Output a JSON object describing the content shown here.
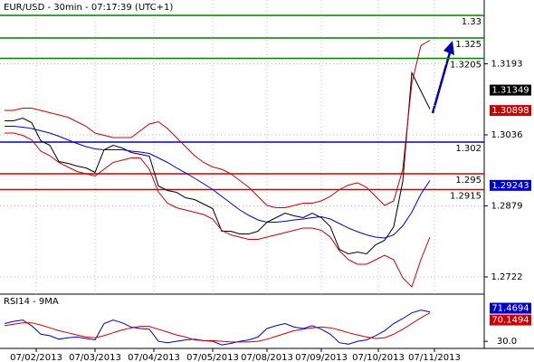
{
  "chart_data": [
    {
      "type": "line",
      "title": "EUR/USD - 30min - 07:17:39 (UTC+1)",
      "x": [
        0,
        1,
        2,
        3,
        4,
        5,
        6,
        7,
        8,
        9,
        10,
        11,
        12,
        13,
        14,
        15,
        16,
        17,
        18,
        19,
        20,
        21,
        22,
        23,
        24,
        25,
        26,
        27,
        28,
        29,
        30,
        31,
        32,
        33,
        34,
        35,
        36,
        37,
        38,
        39,
        40,
        41,
        42,
        43,
        44,
        45,
        46,
        47
      ],
      "xlim": [
        -0.5,
        53
      ],
      "xticks": [
        {
          "value": 3.5,
          "label": "07/02/2013"
        },
        {
          "value": 10,
          "label": "07/03/2013"
        },
        {
          "value": 16.5,
          "label": "07/04/2013"
        },
        {
          "value": 23,
          "label": "07/05/2013"
        },
        {
          "value": 29,
          "label": "07/08/2013"
        },
        {
          "value": 35,
          "label": "07/09/2013"
        },
        {
          "value": 41.3,
          "label": "07/10/2013"
        },
        {
          "value": 47.5,
          "label": "07/11/2013"
        }
      ],
      "ylim": [
        1.2684,
        1.3334
      ],
      "yticks": [
        1.3193,
        1.3036,
        1.2879,
        1.2722
      ],
      "grid": true,
      "series": [
        {
          "color": "#000000",
          "values": [
            1.3067,
            1.3067,
            1.3073,
            1.3063,
            1.3023,
            1.3013,
            1.2977,
            1.2973,
            1.2967,
            1.2963,
            1.2953,
            1.3003,
            1.3013,
            1.3007,
            1.2997,
            1.2993,
            1.2989,
            1.2923,
            1.2913,
            1.2909,
            1.2897,
            1.2893,
            1.2883,
            1.2873,
            1.2823,
            1.2823,
            1.2817,
            1.2817,
            1.2823,
            1.2843,
            1.2853,
            1.2863,
            1.2857,
            1.2853,
            1.2863,
            1.2853,
            1.2833,
            1.2783,
            1.2773,
            1.2777,
            1.2773,
            1.2793,
            1.2803,
            1.2833,
            1.2933,
            1.3173,
            1.3133,
            1.3093
          ]
        },
        {
          "color": "#0000cc",
          "values": [
            1.3055,
            1.3055,
            1.3053,
            1.305,
            1.3045,
            1.304,
            1.3033,
            1.3025,
            1.3017,
            1.301,
            1.3005,
            1.3003,
            1.3003,
            1.3003,
            1.3,
            1.2998,
            1.2995,
            1.2985,
            1.2975,
            1.2963,
            1.2952,
            1.294,
            1.2928,
            1.2915,
            1.29,
            1.2885,
            1.287,
            1.2858,
            1.2848,
            1.2843,
            1.2843,
            1.2845,
            1.2848,
            1.285,
            1.2853,
            1.2855,
            1.285,
            1.284,
            1.283,
            1.2822,
            1.2815,
            1.281,
            1.2808,
            1.2815,
            1.2835,
            1.2865,
            1.2905,
            1.2935
          ]
        },
        {
          "color": "#cc0000",
          "values": [
            1.309,
            1.309,
            1.3095,
            1.3095,
            1.309,
            1.3085,
            1.308,
            1.3075,
            1.3065,
            1.3055,
            1.304,
            1.3035,
            1.303,
            1.303,
            1.303,
            1.3045,
            1.306,
            1.3065,
            1.305,
            1.303,
            1.301,
            1.299,
            1.2975,
            1.2965,
            1.296,
            1.295,
            1.2935,
            1.292,
            1.29,
            1.288,
            1.2875,
            1.2875,
            1.288,
            1.2885,
            1.2885,
            1.289,
            1.29,
            1.2915,
            1.2925,
            1.293,
            1.292,
            1.29,
            1.288,
            1.289,
            1.296,
            1.315,
            1.3233,
            1.3245
          ]
        },
        {
          "color": "#cc0000",
          "values": [
            1.304,
            1.304,
            1.3035,
            1.3025,
            1.3,
            1.299,
            1.2975,
            1.2965,
            1.2955,
            1.295,
            1.2945,
            1.296,
            1.2975,
            1.298,
            1.2985,
            1.2985,
            1.296,
            1.291,
            1.2885,
            1.2875,
            1.287,
            1.2865,
            1.286,
            1.285,
            1.2825,
            1.2815,
            1.281,
            1.2805,
            1.2805,
            1.281,
            1.2815,
            1.282,
            1.2825,
            1.283,
            1.283,
            1.2825,
            1.281,
            1.278,
            1.276,
            1.275,
            1.275,
            1.276,
            1.277,
            1.276,
            1.272,
            1.27,
            1.276,
            1.281
          ]
        }
      ],
      "levels": [
        {
          "value": 1.33,
          "color": "#008000"
        },
        {
          "value": 1.325,
          "color": "#008000"
        },
        {
          "value": 1.3205,
          "color": "#008000"
        },
        {
          "value": 1.302,
          "color": "#0000cc"
        },
        {
          "value": 1.295,
          "color": "#cc0000"
        },
        {
          "value": 1.2915,
          "color": "#cc0000"
        }
      ],
      "price_tags": [
        {
          "value": 1.31349,
          "color": "#000000"
        },
        {
          "value": 1.30898,
          "color": "#cc0000"
        },
        {
          "value": 1.29243,
          "color": "#0000cc"
        }
      ]
    },
    {
      "type": "line",
      "title": "RSI14 - 9MA",
      "x": [
        0,
        1,
        2,
        3,
        4,
        5,
        6,
        7,
        8,
        9,
        10,
        11,
        12,
        13,
        14,
        15,
        16,
        17,
        18,
        19,
        20,
        21,
        22,
        23,
        24,
        25,
        26,
        27,
        28,
        29,
        30,
        31,
        32,
        33,
        34,
        35,
        36,
        37,
        38,
        39,
        40,
        41,
        42,
        43,
        44,
        45,
        46,
        47
      ],
      "xlim": [
        -0.5,
        53
      ],
      "ylim": [
        20,
        90
      ],
      "yticks": [
        {
          "value": 30,
          "label": "30.0"
        }
      ],
      "series": [
        {
          "color": "#0000cc",
          "values": [
            55,
            58,
            60,
            52,
            40,
            38,
            33,
            35,
            36,
            34,
            32,
            55,
            60,
            56,
            50,
            48,
            47,
            30,
            28,
            30,
            32,
            33,
            31,
            30,
            25,
            27,
            30,
            32,
            36,
            48,
            52,
            55,
            50,
            48,
            52,
            47,
            40,
            28,
            26,
            30,
            32,
            38,
            45,
            55,
            62,
            70,
            74,
            71.4694
          ]
        },
        {
          "color": "#cc0000",
          "values": [
            52,
            54,
            56,
            56,
            53,
            49,
            45,
            42,
            39,
            36,
            35,
            38,
            42,
            46,
            49,
            51,
            51,
            47,
            43,
            39,
            36,
            32,
            31,
            31,
            30,
            29,
            29,
            29,
            30,
            33,
            37,
            41,
            45,
            47,
            49,
            50,
            49,
            46,
            42,
            39,
            36,
            34,
            35,
            40,
            47,
            55,
            63,
            70.1494
          ]
        }
      ]
    }
  ]
}
